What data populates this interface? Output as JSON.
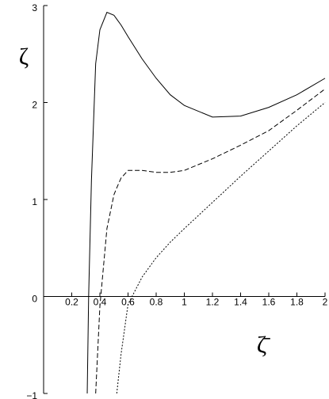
{
  "chart_data": {
    "type": "line",
    "y_label": "ζ",
    "x_label": "ζ̄",
    "x": [
      0.31,
      0.32,
      0.34,
      0.37,
      0.4,
      0.45,
      0.5,
      0.52,
      0.55,
      0.6,
      0.7,
      0.8,
      0.9,
      1.0,
      1.2,
      1.4,
      1.6,
      1.8,
      2.0
    ],
    "series": [
      {
        "color": "#000000",
        "dash": "solid",
        "values": [
          -1,
          0,
          1.2,
          2.4,
          2.75,
          2.93,
          2.9,
          2.86,
          2.8,
          2.68,
          2.45,
          2.25,
          2.08,
          1.97,
          1.85,
          1.86,
          1.95,
          2.08,
          2.25
        ]
      },
      {
        "color": "#000000",
        "dash": "dashed",
        "values": [
          null,
          null,
          null,
          -1,
          -0.1,
          0.7,
          1.05,
          1.12,
          1.22,
          1.3,
          1.3,
          1.28,
          1.28,
          1.3,
          1.42,
          1.56,
          1.71,
          1.92,
          2.14
        ]
      },
      {
        "color": "#000000",
        "dash": "dotted",
        "values": [
          null,
          null,
          null,
          null,
          null,
          null,
          null,
          -1,
          -0.6,
          -0.08,
          0.2,
          0.4,
          0.56,
          0.7,
          0.97,
          1.24,
          1.5,
          1.76,
          2.0
        ]
      }
    ],
    "xlim": [
      0,
      2
    ],
    "ylim": [
      -1,
      3
    ],
    "xticks": [
      0.2,
      0.4,
      0.6,
      0.8,
      1,
      1.2,
      1.4,
      1.6,
      1.8,
      2
    ],
    "yticks": [
      {
        "value": -1,
        "label": "−1"
      },
      0,
      1,
      2,
      3
    ]
  }
}
